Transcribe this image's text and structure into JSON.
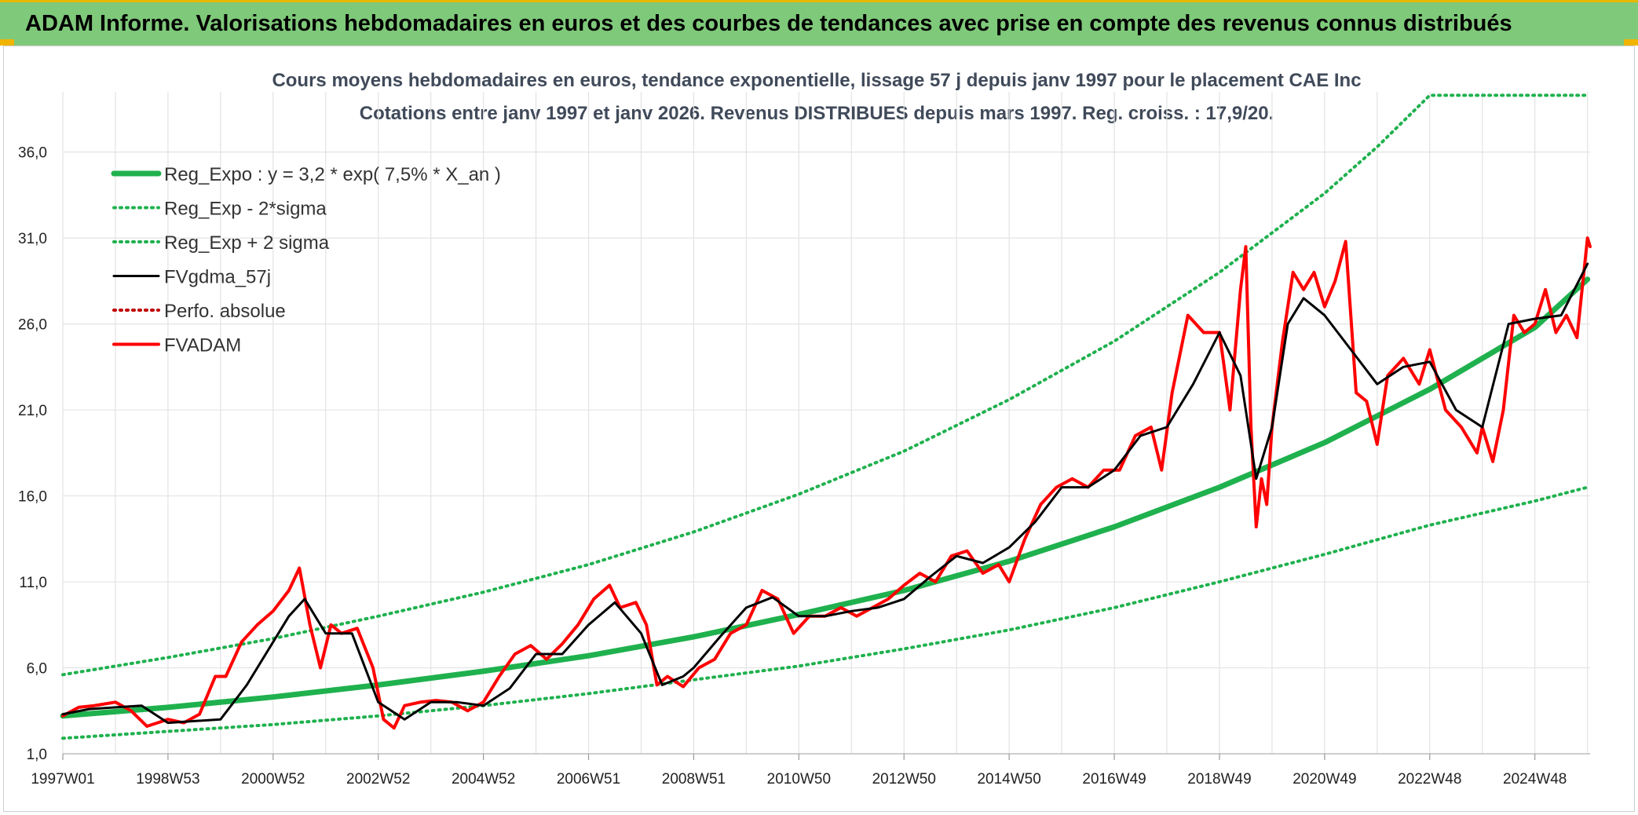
{
  "banner": {
    "title": "ADAM Informe. Valorisations hebdomadaires en euros et des courbes de tendances avec prise en compte des revenus connus distribués"
  },
  "colors": {
    "banner": "#7fc97a",
    "reg": "#1fb14e",
    "price": "#ff0000",
    "smooth": "#000000",
    "perf": "#c00000"
  },
  "chart_data": {
    "type": "line",
    "title": "Cours moyens hebdomadaires en euros, tendance exponentielle, lissage 57 j depuis janv 1997 pour le placement CAE Inc",
    "subtitle": "Cotations entre janv 1997 et janv 2026. Revenus DISTRIBUES depuis mars 1997. Reg. croiss. : 17,9/20.",
    "xlabel": "",
    "ylabel": "",
    "x_unit": "year",
    "xlim": [
      1997.0,
      2026.05
    ],
    "ylim": [
      1.0,
      39.5
    ],
    "yticks": [
      1.0,
      6.0,
      11.0,
      16.0,
      21.0,
      26.0,
      31.0,
      36.0
    ],
    "ytick_labels": [
      "1,0",
      "6,0",
      "11,0",
      "16,0",
      "21,0",
      "26,0",
      "31,0",
      "36,0"
    ],
    "xticks": [
      1997.0,
      1999.0,
      2001.0,
      2003.0,
      2005.0,
      2007.0,
      2009.0,
      2011.0,
      2013.0,
      2015.0,
      2017.0,
      2019.0,
      2021.0,
      2023.0,
      2025.0
    ],
    "xtick_labels": [
      "1997W01",
      "1998W53",
      "2000W52",
      "2002W52",
      "2004W52",
      "2006W51",
      "2008W51",
      "2010W50",
      "2012W50",
      "2014W50",
      "2016W49",
      "2018W49",
      "2020W49",
      "2022W48",
      "2024W48"
    ],
    "grid": true,
    "legend_position": "top-left",
    "series": [
      {
        "name": "Reg_Expo : y = 3,2 * exp( 7,5% *  X_an )",
        "style": "solid-thick",
        "color": "#1fb14e",
        "x": [
          1997,
          1999,
          2001,
          2003,
          2005,
          2007,
          2009,
          2011,
          2013,
          2015,
          2017,
          2019,
          2021,
          2023,
          2025,
          2026
        ],
        "y": [
          3.2,
          3.7,
          4.3,
          5.0,
          5.8,
          6.7,
          7.8,
          9.1,
          10.5,
          12.2,
          14.2,
          16.5,
          19.1,
          22.2,
          25.8,
          28.6
        ]
      },
      {
        "name": "Reg_Exp - 2*sigma",
        "style": "dotted",
        "color": "#1fb14e",
        "x": [
          1997,
          1999,
          2001,
          2003,
          2005,
          2007,
          2009,
          2011,
          2013,
          2015,
          2017,
          2019,
          2021,
          2023,
          2025,
          2026
        ],
        "y": [
          1.9,
          2.3,
          2.7,
          3.2,
          3.8,
          4.5,
          5.3,
          6.1,
          7.1,
          8.2,
          9.5,
          11.0,
          12.6,
          14.3,
          15.7,
          16.5
        ]
      },
      {
        "name": "Reg_Exp + 2 sigma",
        "style": "dotted",
        "color": "#1fb14e",
        "x": [
          1997,
          1999,
          2001,
          2003,
          2005,
          2007,
          2009,
          2011,
          2013,
          2015,
          2017,
          2019,
          2021,
          2022,
          2023,
          2024,
          2026
        ],
        "y": [
          5.6,
          6.6,
          7.7,
          9.0,
          10.4,
          12.0,
          13.9,
          16.1,
          18.6,
          21.6,
          25.0,
          29.0,
          33.6,
          36.3,
          39.3,
          39.3,
          39.3
        ]
      },
      {
        "name": "FVgdma_57j",
        "style": "solid",
        "color": "#000000",
        "x": [
          1997.0,
          1997.5,
          1998.0,
          1998.5,
          1999.0,
          1999.5,
          2000.0,
          2000.5,
          2001.0,
          2001.3,
          2001.6,
          2002.0,
          2002.5,
          2003.0,
          2003.5,
          2004.0,
          2004.5,
          2005.0,
          2005.5,
          2006.0,
          2006.5,
          2007.0,
          2007.5,
          2008.0,
          2008.4,
          2008.8,
          2009.0,
          2009.5,
          2010.0,
          2010.5,
          2011.0,
          2011.5,
          2012.0,
          2012.5,
          2013.0,
          2013.5,
          2014.0,
          2014.5,
          2015.0,
          2015.5,
          2016.0,
          2016.5,
          2017.0,
          2017.5,
          2018.0,
          2018.5,
          2019.0,
          2019.4,
          2019.7,
          2020.0,
          2020.3,
          2020.6,
          2021.0,
          2021.5,
          2022.0,
          2022.5,
          2023.0,
          2023.5,
          2024.0,
          2024.5,
          2025.0,
          2025.5,
          2026.0
        ],
        "y": [
          3.3,
          3.6,
          3.7,
          3.8,
          2.8,
          2.9,
          3.0,
          5.0,
          7.5,
          9.0,
          10.0,
          8.0,
          8.0,
          4.0,
          3.0,
          4.0,
          4.0,
          3.8,
          4.8,
          6.8,
          6.8,
          8.5,
          9.8,
          8.0,
          5.0,
          5.5,
          6.0,
          7.8,
          9.5,
          10.1,
          9.0,
          9.0,
          9.3,
          9.5,
          10.0,
          11.3,
          12.5,
          12.1,
          13.0,
          14.5,
          16.5,
          16.5,
          17.5,
          19.5,
          20.0,
          22.5,
          25.5,
          23.0,
          17.0,
          20.0,
          26.0,
          27.5,
          26.5,
          24.5,
          22.5,
          23.5,
          23.8,
          21.0,
          20.0,
          26.0,
          26.3,
          26.5,
          29.5
        ]
      },
      {
        "name": "Perfo. absolue",
        "style": "dotted",
        "color": "#c00000",
        "x": [],
        "y": []
      },
      {
        "name": "FVADAM",
        "style": "solid-thick",
        "color": "#ff0000",
        "x": [
          1997.0,
          1997.3,
          1997.6,
          1998.0,
          1998.3,
          1998.6,
          1998.8,
          1999.0,
          1999.3,
          1999.6,
          1999.9,
          2000.1,
          2000.4,
          2000.7,
          2001.0,
          2001.3,
          2001.5,
          2001.7,
          2001.9,
          2002.1,
          2002.3,
          2002.6,
          2002.9,
          2003.1,
          2003.3,
          2003.5,
          2003.8,
          2004.1,
          2004.4,
          2004.7,
          2005.0,
          2005.3,
          2005.6,
          2005.9,
          2006.2,
          2006.5,
          2006.8,
          2007.1,
          2007.4,
          2007.6,
          2007.9,
          2008.1,
          2008.3,
          2008.5,
          2008.8,
          2009.1,
          2009.4,
          2009.7,
          2010.0,
          2010.3,
          2010.6,
          2010.9,
          2011.2,
          2011.5,
          2011.8,
          2012.1,
          2012.4,
          2012.7,
          2013.0,
          2013.3,
          2013.6,
          2013.9,
          2014.2,
          2014.5,
          2014.8,
          2015.0,
          2015.3,
          2015.6,
          2015.9,
          2016.2,
          2016.5,
          2016.8,
          2017.1,
          2017.4,
          2017.7,
          2017.9,
          2018.1,
          2018.4,
          2018.7,
          2019.0,
          2019.2,
          2019.4,
          2019.5,
          2019.6,
          2019.7,
          2019.8,
          2019.9,
          2020.0,
          2020.2,
          2020.4,
          2020.6,
          2020.8,
          2021.0,
          2021.2,
          2021.4,
          2021.6,
          2021.8,
          2022.0,
          2022.2,
          2022.5,
          2022.8,
          2023.0,
          2023.3,
          2023.6,
          2023.9,
          2024.0,
          2024.2,
          2024.4,
          2024.6,
          2024.8,
          2025.0,
          2025.2,
          2025.4,
          2025.6,
          2025.8,
          2026.0,
          2026.05
        ],
        "y": [
          3.2,
          3.7,
          3.8,
          4.0,
          3.5,
          2.6,
          2.8,
          3.0,
          2.8,
          3.3,
          5.5,
          5.5,
          7.5,
          8.5,
          9.3,
          10.5,
          11.8,
          8.5,
          6.0,
          8.5,
          8.0,
          8.3,
          6.0,
          3.0,
          2.5,
          3.8,
          4.0,
          4.1,
          4.0,
          3.5,
          4.0,
          5.5,
          6.8,
          7.3,
          6.5,
          7.4,
          8.5,
          10.0,
          10.8,
          9.5,
          9.8,
          8.5,
          5.0,
          5.5,
          4.9,
          6.0,
          6.5,
          8.0,
          8.5,
          10.5,
          10.0,
          8.0,
          9.0,
          9.0,
          9.5,
          9.0,
          9.5,
          10.0,
          10.8,
          11.5,
          11.0,
          12.5,
          12.8,
          11.5,
          12.0,
          11.0,
          13.5,
          15.5,
          16.5,
          17.0,
          16.5,
          17.5,
          17.5,
          19.5,
          20.0,
          17.5,
          22.0,
          26.5,
          25.5,
          25.5,
          21.0,
          28.0,
          30.5,
          20.0,
          14.2,
          17.0,
          15.5,
          20.0,
          25.0,
          29.0,
          28.0,
          29.0,
          27.0,
          28.5,
          30.8,
          22.0,
          21.5,
          19.0,
          23.0,
          24.0,
          22.5,
          24.5,
          21.0,
          20.0,
          18.5,
          20.0,
          18.0,
          21.0,
          26.5,
          25.5,
          26.0,
          28.0,
          25.5,
          26.5,
          25.2,
          31.0,
          30.5
        ]
      }
    ]
  }
}
